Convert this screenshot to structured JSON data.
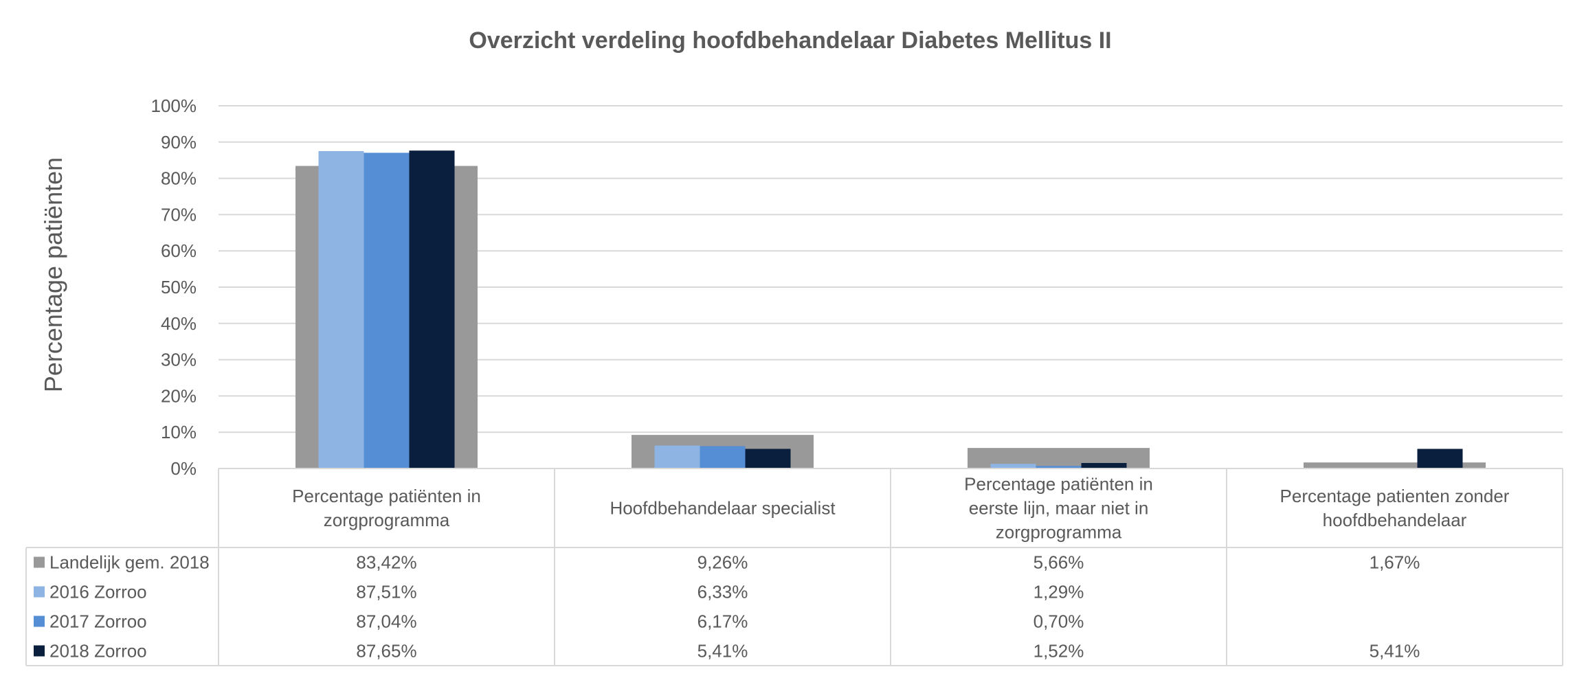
{
  "chart_data": {
    "type": "bar",
    "title": "Overzicht verdeling hoofdbehandelaar Diabetes Mellitus II",
    "ylabel": "Percentage patiënten",
    "xlabel": "",
    "ylim": [
      0,
      100
    ],
    "yticks": [
      "0%",
      "10%",
      "20%",
      "30%",
      "40%",
      "50%",
      "60%",
      "70%",
      "80%",
      "90%",
      "100%"
    ],
    "grid": true,
    "categories": [
      [
        "Percentage patiënten in",
        "zorgprogramma"
      ],
      [
        "Hoofdbehandelaar specialist"
      ],
      [
        "Percentage patiënten in",
        "eerste lijn, maar niet in",
        "zorgprogramma"
      ],
      [
        "Percentage patienten zonder",
        "hoofdbehandelaar"
      ]
    ],
    "background_series": {
      "name": "Landelijk gem. 2018",
      "color": "#999999",
      "values": [
        83.42,
        9.26,
        5.66,
        1.67
      ],
      "labels": [
        "83,42%",
        "9,26%",
        "5,66%",
        "1,67%"
      ]
    },
    "series": [
      {
        "name": "2016 Zorroo",
        "color": "#8EB4E3",
        "values": [
          87.51,
          6.33,
          1.29,
          null
        ],
        "labels": [
          "87,51%",
          "6,33%",
          "1,29%",
          ""
        ]
      },
      {
        "name": "2017 Zorroo",
        "color": "#558ED5",
        "values": [
          87.04,
          6.17,
          0.7,
          null
        ],
        "labels": [
          "87,04%",
          "6,17%",
          "0,70%",
          ""
        ]
      },
      {
        "name": "2018 Zorroo",
        "color": "#0A1F3D",
        "values": [
          87.65,
          5.41,
          1.52,
          5.41
        ],
        "labels": [
          "87,65%",
          "5,41%",
          "1,52%",
          "5,41%"
        ]
      }
    ],
    "legend": "data-table"
  }
}
